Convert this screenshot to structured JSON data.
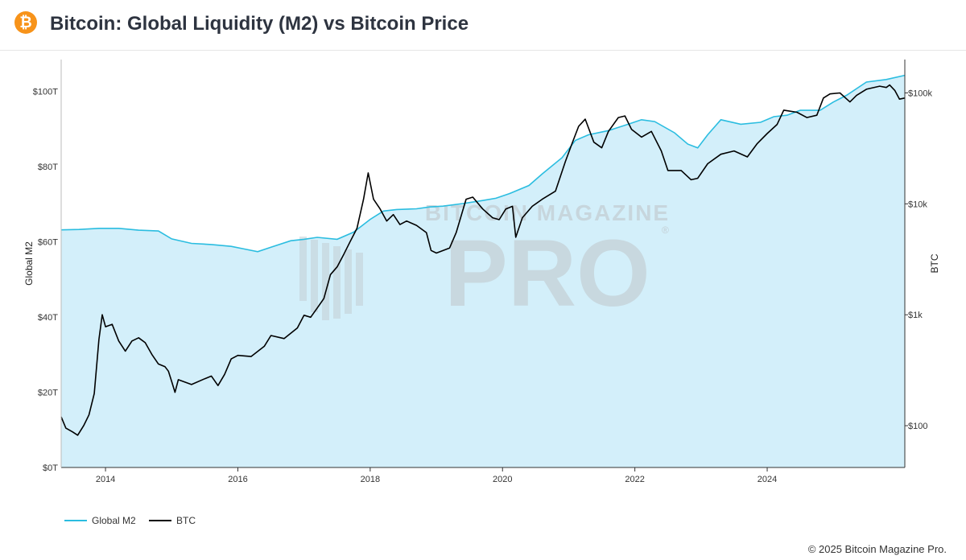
{
  "header": {
    "logo_symbol": "₿",
    "logo_icon": "bitcoin-icon",
    "title": "Bitcoin: Global Liquidity (M2) vs Bitcoin Price"
  },
  "watermark": {
    "line1": "BITCOIN MAGAZINE",
    "line2": "PRO",
    "mark": "®"
  },
  "footer": {
    "copyright": "© 2025 Bitcoin Magazine Pro."
  },
  "colors": {
    "m2_line": "#2bbde0",
    "m2_fill": "#d3effa",
    "btc_line": "#000000",
    "watermark": "#c3ced3",
    "axis": "#333333",
    "brand": "#f7931a"
  },
  "chart_data": {
    "type": "line",
    "title": "Bitcoin: Global Liquidity (M2) vs Bitcoin Price",
    "xlabel": "",
    "ylabel_left": "Global M2",
    "ylabel_right": "BTC",
    "x_ticks": [
      "2014",
      "2016",
      "2018",
      "2020",
      "2022",
      "2024"
    ],
    "x_tick_values": [
      2014,
      2016,
      2018,
      2020,
      2022,
      2024
    ],
    "xlim": [
      2013.33,
      2026.08
    ],
    "y_left_ticks": [
      "$0T",
      "$20T",
      "$40T",
      "$60T",
      "$80T",
      "$100T"
    ],
    "y_left_tick_values": [
      0,
      20,
      40,
      60,
      80,
      100
    ],
    "y_left_lim": [
      0,
      108.5
    ],
    "y_left_unit": "USD trillions",
    "y_right_ticks": [
      "$100",
      "$1k",
      "$10k",
      "$100k"
    ],
    "y_right_tick_values": [
      100,
      1000,
      10000,
      100000
    ],
    "y_right_lim": [
      42,
      200000
    ],
    "y_right_scale": "log",
    "grid": false,
    "legend_position": "bottom-left",
    "series": [
      {
        "name": "Global M2",
        "axis": "left",
        "style": "area",
        "points": [
          [
            2013.33,
            63.2
          ],
          [
            2013.6,
            63.3
          ],
          [
            2013.9,
            63.6
          ],
          [
            2014.2,
            63.6
          ],
          [
            2014.5,
            63.1
          ],
          [
            2014.8,
            62.9
          ],
          [
            2015.0,
            60.8
          ],
          [
            2015.3,
            59.6
          ],
          [
            2015.6,
            59.3
          ],
          [
            2015.9,
            58.8
          ],
          [
            2016.1,
            58.1
          ],
          [
            2016.3,
            57.4
          ],
          [
            2016.5,
            58.6
          ],
          [
            2016.8,
            60.3
          ],
          [
            2017.0,
            60.7
          ],
          [
            2017.2,
            61.2
          ],
          [
            2017.5,
            60.7
          ],
          [
            2017.75,
            62.6
          ],
          [
            2018.0,
            66.0
          ],
          [
            2018.2,
            68.2
          ],
          [
            2018.4,
            68.6
          ],
          [
            2018.7,
            68.8
          ],
          [
            2018.9,
            69.3
          ],
          [
            2019.1,
            69.5
          ],
          [
            2019.4,
            70.2
          ],
          [
            2019.7,
            71.0
          ],
          [
            2019.9,
            71.6
          ],
          [
            2020.1,
            72.8
          ],
          [
            2020.4,
            75.0
          ],
          [
            2020.6,
            78.1
          ],
          [
            2020.9,
            82.4
          ],
          [
            2021.1,
            87.0
          ],
          [
            2021.3,
            88.5
          ],
          [
            2021.6,
            89.6
          ],
          [
            2021.9,
            91.3
          ],
          [
            2022.1,
            92.5
          ],
          [
            2022.3,
            92.0
          ],
          [
            2022.6,
            89.0
          ],
          [
            2022.8,
            86.0
          ],
          [
            2022.95,
            85.0
          ],
          [
            2023.1,
            88.5
          ],
          [
            2023.3,
            92.5
          ],
          [
            2023.6,
            91.3
          ],
          [
            2023.9,
            91.8
          ],
          [
            2024.1,
            93.3
          ],
          [
            2024.3,
            93.7
          ],
          [
            2024.5,
            95.0
          ],
          [
            2024.8,
            95.0
          ],
          [
            2025.0,
            97.2
          ],
          [
            2025.2,
            99.0
          ],
          [
            2025.5,
            102.5
          ],
          [
            2025.8,
            103.2
          ],
          [
            2026.08,
            104.3
          ]
        ]
      },
      {
        "name": "BTC",
        "axis": "right",
        "style": "line",
        "points": [
          [
            2013.33,
            120
          ],
          [
            2013.4,
            95
          ],
          [
            2013.5,
            88
          ],
          [
            2013.58,
            82
          ],
          [
            2013.67,
            100
          ],
          [
            2013.75,
            125
          ],
          [
            2013.83,
            195
          ],
          [
            2013.9,
            600
          ],
          [
            2013.95,
            1000
          ],
          [
            2014.0,
            780
          ],
          [
            2014.1,
            820
          ],
          [
            2014.2,
            580
          ],
          [
            2014.3,
            470
          ],
          [
            2014.4,
            580
          ],
          [
            2014.5,
            620
          ],
          [
            2014.6,
            560
          ],
          [
            2014.7,
            440
          ],
          [
            2014.8,
            360
          ],
          [
            2014.9,
            340
          ],
          [
            2014.95,
            310
          ],
          [
            2015.0,
            250
          ],
          [
            2015.05,
            200
          ],
          [
            2015.1,
            260
          ],
          [
            2015.3,
            235
          ],
          [
            2015.5,
            265
          ],
          [
            2015.6,
            280
          ],
          [
            2015.7,
            230
          ],
          [
            2015.8,
            290
          ],
          [
            2015.9,
            400
          ],
          [
            2016.0,
            430
          ],
          [
            2016.2,
            420
          ],
          [
            2016.4,
            520
          ],
          [
            2016.5,
            650
          ],
          [
            2016.7,
            610
          ],
          [
            2016.9,
            760
          ],
          [
            2017.0,
            990
          ],
          [
            2017.1,
            950
          ],
          [
            2017.2,
            1150
          ],
          [
            2017.3,
            1400
          ],
          [
            2017.4,
            2300
          ],
          [
            2017.5,
            2700
          ],
          [
            2017.6,
            3500
          ],
          [
            2017.7,
            4600
          ],
          [
            2017.8,
            6000
          ],
          [
            2017.9,
            11000
          ],
          [
            2017.97,
            19000
          ],
          [
            2018.05,
            11000
          ],
          [
            2018.15,
            9000
          ],
          [
            2018.25,
            7000
          ],
          [
            2018.35,
            8000
          ],
          [
            2018.45,
            6500
          ],
          [
            2018.55,
            7000
          ],
          [
            2018.7,
            6400
          ],
          [
            2018.85,
            5500
          ],
          [
            2018.92,
            3800
          ],
          [
            2019.0,
            3600
          ],
          [
            2019.2,
            4000
          ],
          [
            2019.3,
            5500
          ],
          [
            2019.45,
            11000
          ],
          [
            2019.55,
            11500
          ],
          [
            2019.7,
            9000
          ],
          [
            2019.85,
            7500
          ],
          [
            2019.95,
            7200
          ],
          [
            2020.05,
            9000
          ],
          [
            2020.15,
            9500
          ],
          [
            2020.2,
            5000
          ],
          [
            2020.3,
            7500
          ],
          [
            2020.45,
            9500
          ],
          [
            2020.6,
            11000
          ],
          [
            2020.8,
            13000
          ],
          [
            2020.95,
            24000
          ],
          [
            2021.05,
            35000
          ],
          [
            2021.15,
            50000
          ],
          [
            2021.25,
            58000
          ],
          [
            2021.38,
            36000
          ],
          [
            2021.5,
            32000
          ],
          [
            2021.6,
            45000
          ],
          [
            2021.75,
            60000
          ],
          [
            2021.85,
            62000
          ],
          [
            2021.95,
            47000
          ],
          [
            2022.1,
            40000
          ],
          [
            2022.25,
            45000
          ],
          [
            2022.4,
            30000
          ],
          [
            2022.5,
            20000
          ],
          [
            2022.7,
            20000
          ],
          [
            2022.85,
            16500
          ],
          [
            2022.95,
            17000
          ],
          [
            2023.1,
            23000
          ],
          [
            2023.3,
            28000
          ],
          [
            2023.5,
            30000
          ],
          [
            2023.7,
            26500
          ],
          [
            2023.85,
            35000
          ],
          [
            2024.0,
            43000
          ],
          [
            2024.15,
            52000
          ],
          [
            2024.25,
            70000
          ],
          [
            2024.45,
            67000
          ],
          [
            2024.6,
            60000
          ],
          [
            2024.75,
            63000
          ],
          [
            2024.85,
            90000
          ],
          [
            2024.95,
            98000
          ],
          [
            2025.1,
            100000
          ],
          [
            2025.25,
            83000
          ],
          [
            2025.35,
            95000
          ],
          [
            2025.5,
            108000
          ],
          [
            2025.7,
            115000
          ],
          [
            2025.8,
            112000
          ],
          [
            2025.85,
            118000
          ],
          [
            2025.93,
            105000
          ],
          [
            2026.0,
            88000
          ],
          [
            2026.08,
            90000
          ]
        ]
      }
    ]
  }
}
